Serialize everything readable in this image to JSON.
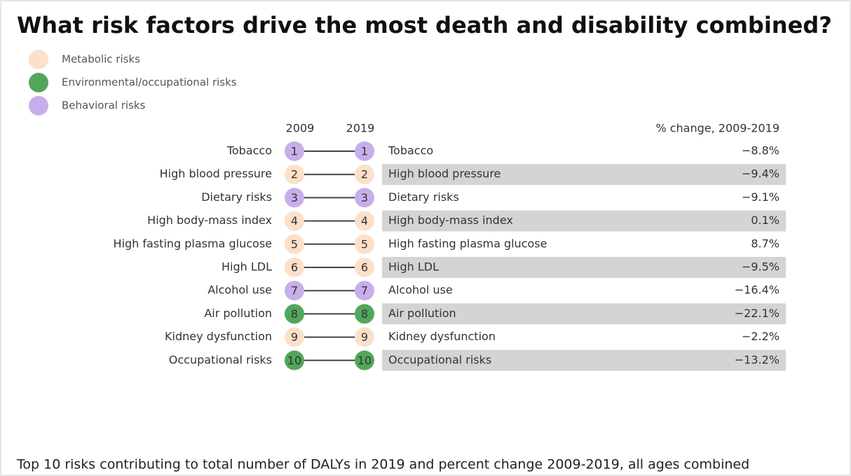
{
  "title": "What risk factors drive the most death and disability combined?",
  "legend": [
    {
      "label": "Metabolic risks",
      "color": "#fce0c9"
    },
    {
      "label": "Environmental/occupational risks",
      "color": "#52a65a"
    },
    {
      "label": "Behavioral risks",
      "color": "#c8aeea"
    }
  ],
  "columns": {
    "year_a": "2009",
    "year_b": "2019",
    "change": "% change, 2009-2019"
  },
  "rows": [
    {
      "label_a": "Tobacco",
      "rank_a": 1,
      "rank_b": 1,
      "label_b": "Tobacco",
      "group": 2,
      "change": "−8.8%"
    },
    {
      "label_a": "High blood pressure",
      "rank_a": 2,
      "rank_b": 2,
      "label_b": "High blood pressure",
      "group": 0,
      "change": "−9.4%"
    },
    {
      "label_a": "Dietary risks",
      "rank_a": 3,
      "rank_b": 3,
      "label_b": "Dietary risks",
      "group": 2,
      "change": "−9.1%"
    },
    {
      "label_a": "High body-mass index",
      "rank_a": 4,
      "rank_b": 4,
      "label_b": "High body-mass index",
      "group": 0,
      "change": "0.1%"
    },
    {
      "label_a": "High fasting plasma glucose",
      "rank_a": 5,
      "rank_b": 5,
      "label_b": "High fasting plasma glucose",
      "group": 0,
      "change": "8.7%"
    },
    {
      "label_a": "High LDL",
      "rank_a": 6,
      "rank_b": 6,
      "label_b": "High LDL",
      "group": 0,
      "change": "−9.5%"
    },
    {
      "label_a": "Alcohol use",
      "rank_a": 7,
      "rank_b": 7,
      "label_b": "Alcohol use",
      "group": 2,
      "change": "−16.4%"
    },
    {
      "label_a": "Air pollution",
      "rank_a": 8,
      "rank_b": 8,
      "label_b": "Air pollution",
      "group": 1,
      "change": "−22.1%"
    },
    {
      "label_a": "Kidney dysfunction",
      "rank_a": 9,
      "rank_b": 9,
      "label_b": "Kidney dysfunction",
      "group": 0,
      "change": "−2.2%"
    },
    {
      "label_a": "Occupational risks",
      "rank_a": 10,
      "rank_b": 10,
      "label_b": "Occupational risks",
      "group": 1,
      "change": "−13.2%"
    }
  ],
  "footer": "Top 10 risks contributing to total number of DALYs in 2019 and percent change 2009-2019, all ages combined"
}
